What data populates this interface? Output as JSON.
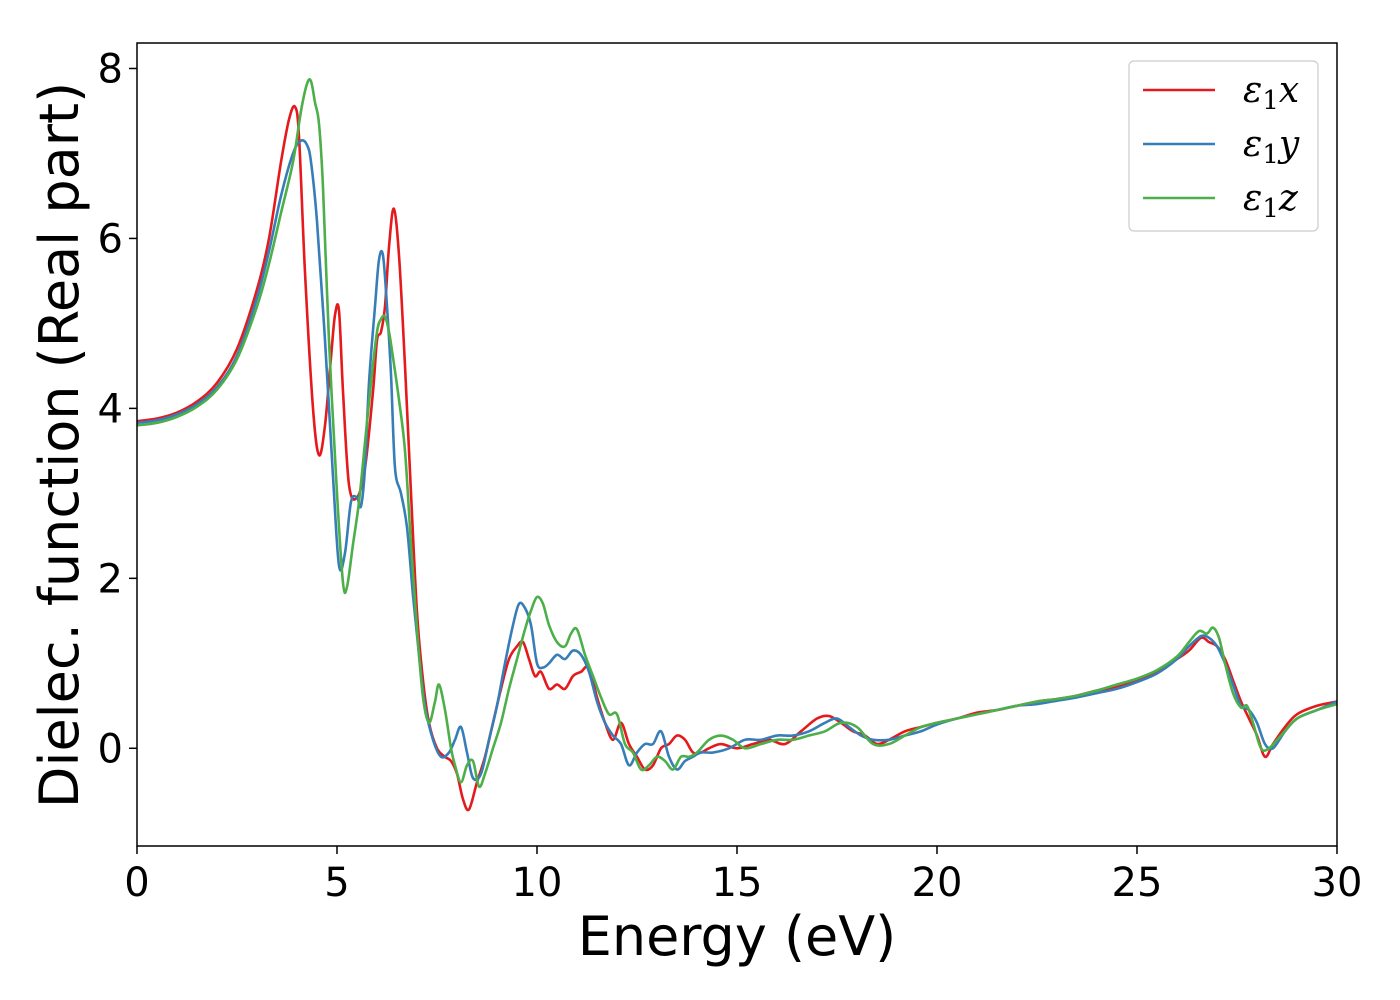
{
  "chart_data": {
    "type": "line",
    "xlabel": "Energy (eV)",
    "ylabel": "Dielec. function (Real part)",
    "xlim": [
      0,
      30
    ],
    "ylim": [
      -1.15,
      8.3
    ],
    "xticks": [
      0,
      5,
      10,
      15,
      20,
      25,
      30
    ],
    "yticks": [
      0,
      2,
      4,
      6,
      8
    ],
    "grid": false,
    "legend_position": "top-right",
    "series": [
      {
        "name": "ε1x",
        "legend_main": "ε",
        "legend_sub": "1",
        "legend_tail": "x",
        "color": "#e41a1c",
        "x": [
          0,
          0.5,
          1,
          1.5,
          2,
          2.5,
          3,
          3.3,
          3.6,
          3.8,
          3.95,
          4.05,
          4.2,
          4.4,
          4.55,
          4.7,
          4.85,
          4.95,
          5.05,
          5.15,
          5.3,
          5.5,
          5.7,
          5.9,
          6.0,
          6.1,
          6.2,
          6.3,
          6.42,
          6.55,
          6.7,
          6.85,
          7.0,
          7.15,
          7.3,
          7.5,
          7.7,
          7.85,
          8.0,
          8.15,
          8.3,
          8.5,
          8.7,
          8.9,
          9.1,
          9.3,
          9.5,
          9.65,
          9.8,
          9.95,
          10.1,
          10.3,
          10.5,
          10.7,
          10.9,
          11.1,
          11.3,
          11.5,
          11.7,
          11.9,
          12.1,
          12.3,
          12.5,
          12.7,
          12.9,
          13.1,
          13.3,
          13.5,
          13.7,
          13.9,
          14.1,
          14.3,
          14.6,
          15.0,
          15.4,
          15.8,
          16.2,
          16.6,
          17.0,
          17.3,
          17.6,
          17.9,
          18.2,
          18.5,
          18.8,
          19.2,
          19.6,
          20.0,
          20.5,
          21.0,
          21.5,
          22.0,
          22.5,
          23.0,
          23.5,
          24.0,
          24.5,
          25.0,
          25.5,
          26.0,
          26.3,
          26.6,
          26.8,
          27.0,
          27.2,
          27.4,
          27.6,
          27.8,
          28.0,
          28.2,
          28.4,
          28.7,
          29.0,
          29.5,
          30.0
        ],
        "y": [
          3.85,
          3.88,
          3.95,
          4.08,
          4.3,
          4.7,
          5.4,
          6.0,
          6.9,
          7.4,
          7.55,
          7.2,
          5.6,
          4.0,
          3.45,
          3.8,
          4.6,
          5.1,
          5.15,
          4.2,
          3.1,
          2.95,
          3.3,
          4.2,
          4.8,
          4.9,
          5.2,
          5.9,
          6.35,
          5.8,
          4.5,
          3.0,
          1.6,
          0.8,
          0.3,
          0.0,
          -0.1,
          -0.15,
          -0.3,
          -0.6,
          -0.72,
          -0.4,
          -0.1,
          0.3,
          0.7,
          1.05,
          1.2,
          1.25,
          1.05,
          0.85,
          0.9,
          0.7,
          0.75,
          0.7,
          0.85,
          0.9,
          0.95,
          0.6,
          0.3,
          0.1,
          0.3,
          0.05,
          -0.1,
          -0.25,
          -0.2,
          0.0,
          0.05,
          0.15,
          0.1,
          -0.05,
          -0.05,
          0.0,
          0.05,
          0.0,
          0.05,
          0.1,
          0.05,
          0.2,
          0.35,
          0.38,
          0.3,
          0.2,
          0.15,
          0.05,
          0.1,
          0.2,
          0.25,
          0.3,
          0.35,
          0.42,
          0.45,
          0.5,
          0.55,
          0.58,
          0.62,
          0.68,
          0.72,
          0.8,
          0.9,
          1.05,
          1.15,
          1.3,
          1.25,
          1.2,
          1.05,
          0.8,
          0.55,
          0.35,
          0.15,
          -0.1,
          0.05,
          0.25,
          0.4,
          0.5,
          0.55
        ]
      },
      {
        "name": "ε1y",
        "legend_main": "ε",
        "legend_sub": "1",
        "legend_tail": "y",
        "color": "#377eb8",
        "x": [
          0,
          0.5,
          1,
          1.5,
          2,
          2.5,
          3,
          3.3,
          3.6,
          3.9,
          4.1,
          4.25,
          4.35,
          4.5,
          4.7,
          4.9,
          5.05,
          5.2,
          5.35,
          5.5,
          5.6,
          5.7,
          5.8,
          5.95,
          6.05,
          6.15,
          6.25,
          6.35,
          6.45,
          6.6,
          6.75,
          6.9,
          7.05,
          7.2,
          7.4,
          7.6,
          7.8,
          7.95,
          8.1,
          8.25,
          8.4,
          8.6,
          8.8,
          9.0,
          9.2,
          9.4,
          9.55,
          9.7,
          9.85,
          10.0,
          10.15,
          10.3,
          10.5,
          10.7,
          10.9,
          11.1,
          11.3,
          11.5,
          11.7,
          11.9,
          12.1,
          12.3,
          12.5,
          12.7,
          12.9,
          13.1,
          13.3,
          13.5,
          13.7,
          13.9,
          14.1,
          14.4,
          14.8,
          15.2,
          15.6,
          16.0,
          16.4,
          16.8,
          17.2,
          17.5,
          17.8,
          18.1,
          18.4,
          18.8,
          19.2,
          19.6,
          20.0,
          20.5,
          21.0,
          21.5,
          22.0,
          22.5,
          23.0,
          23.5,
          24.0,
          24.5,
          25.0,
          25.5,
          26.0,
          26.3,
          26.6,
          26.8,
          27.0,
          27.2,
          27.4,
          27.6,
          27.8,
          28.0,
          28.2,
          28.4,
          28.7,
          29.0,
          29.5,
          30.0
        ],
        "y": [
          3.83,
          3.86,
          3.93,
          4.05,
          4.25,
          4.62,
          5.3,
          5.85,
          6.5,
          7.0,
          7.15,
          7.1,
          6.9,
          6.2,
          4.8,
          3.2,
          2.15,
          2.3,
          2.9,
          2.95,
          2.85,
          3.3,
          4.3,
          5.2,
          5.75,
          5.8,
          5.2,
          4.4,
          3.3,
          3.0,
          2.6,
          1.8,
          1.1,
          0.5,
          0.1,
          -0.1,
          -0.05,
          0.1,
          0.25,
          -0.05,
          -0.35,
          -0.3,
          0.1,
          0.5,
          1.0,
          1.45,
          1.7,
          1.65,
          1.45,
          1.0,
          0.95,
          1.0,
          1.1,
          1.05,
          1.15,
          1.1,
          0.9,
          0.55,
          0.3,
          0.15,
          0.05,
          -0.2,
          -0.05,
          0.05,
          0.05,
          0.2,
          -0.1,
          -0.25,
          -0.15,
          -0.1,
          -0.05,
          -0.05,
          0.0,
          0.1,
          0.1,
          0.15,
          0.15,
          0.2,
          0.3,
          0.35,
          0.25,
          0.15,
          0.1,
          0.1,
          0.15,
          0.2,
          0.28,
          0.35,
          0.4,
          0.45,
          0.5,
          0.52,
          0.56,
          0.6,
          0.65,
          0.7,
          0.78,
          0.88,
          1.05,
          1.2,
          1.32,
          1.3,
          1.2,
          1.0,
          0.75,
          0.5,
          0.45,
          0.3,
          0.05,
          0.0,
          0.2,
          0.35,
          0.45,
          0.55
        ]
      },
      {
        "name": "ε1z",
        "legend_main": "ε",
        "legend_sub": "1",
        "legend_tail": "z",
        "color": "#4daf4a",
        "x": [
          0,
          0.5,
          1,
          1.5,
          2,
          2.5,
          3,
          3.3,
          3.6,
          3.9,
          4.1,
          4.25,
          4.35,
          4.45,
          4.55,
          4.65,
          4.8,
          5.0,
          5.15,
          5.25,
          5.4,
          5.55,
          5.7,
          5.85,
          6.0,
          6.1,
          6.2,
          6.3,
          6.4,
          6.55,
          6.7,
          6.85,
          7.0,
          7.15,
          7.3,
          7.45,
          7.55,
          7.7,
          7.85,
          7.95,
          8.1,
          8.25,
          8.4,
          8.55,
          8.7,
          8.9,
          9.1,
          9.3,
          9.5,
          9.7,
          9.85,
          10.0,
          10.15,
          10.3,
          10.5,
          10.7,
          10.85,
          11.0,
          11.2,
          11.4,
          11.6,
          11.8,
          12.0,
          12.2,
          12.4,
          12.6,
          12.8,
          13.0,
          13.2,
          13.4,
          13.6,
          13.8,
          14.0,
          14.3,
          14.6,
          14.9,
          15.2,
          15.6,
          16.0,
          16.4,
          16.8,
          17.2,
          17.6,
          18.0,
          18.4,
          18.8,
          19.2,
          19.6,
          20.0,
          20.5,
          21.0,
          21.5,
          22.0,
          22.5,
          23.0,
          23.5,
          24.0,
          24.5,
          25.0,
          25.5,
          26.0,
          26.3,
          26.55,
          26.75,
          26.9,
          27.05,
          27.2,
          27.4,
          27.6,
          27.75,
          27.9,
          28.1,
          28.3,
          28.6,
          29.0,
          29.5,
          30.0
        ],
        "y": [
          3.8,
          3.83,
          3.9,
          4.02,
          4.22,
          4.58,
          5.2,
          5.7,
          6.3,
          6.9,
          7.5,
          7.82,
          7.85,
          7.6,
          7.35,
          6.6,
          4.8,
          3.0,
          1.95,
          1.9,
          2.4,
          2.9,
          3.6,
          4.3,
          4.9,
          5.05,
          5.08,
          4.9,
          4.6,
          4.1,
          3.5,
          2.4,
          1.4,
          0.6,
          0.3,
          0.55,
          0.75,
          0.45,
          0.0,
          -0.2,
          -0.4,
          -0.2,
          -0.15,
          -0.45,
          -0.3,
          0.0,
          0.3,
          0.7,
          1.05,
          1.4,
          1.62,
          1.78,
          1.7,
          1.45,
          1.25,
          1.2,
          1.35,
          1.4,
          1.1,
          0.85,
          0.6,
          0.4,
          0.4,
          0.05,
          -0.05,
          -0.25,
          -0.2,
          -0.1,
          -0.15,
          -0.25,
          -0.1,
          -0.1,
          -0.05,
          0.1,
          0.15,
          0.1,
          0.0,
          0.05,
          0.1,
          0.1,
          0.15,
          0.2,
          0.3,
          0.25,
          0.05,
          0.05,
          0.15,
          0.25,
          0.3,
          0.35,
          0.4,
          0.45,
          0.5,
          0.55,
          0.58,
          0.62,
          0.68,
          0.75,
          0.82,
          0.92,
          1.08,
          1.25,
          1.38,
          1.35,
          1.42,
          1.3,
          1.0,
          0.65,
          0.48,
          0.5,
          0.3,
          0.0,
          0.0,
          0.15,
          0.35,
          0.45,
          0.52
        ]
      }
    ]
  }
}
